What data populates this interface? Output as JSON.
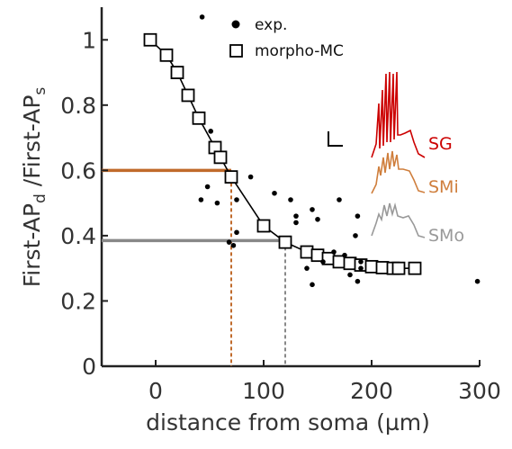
{
  "chart_data": {
    "type": "scatter",
    "xlabel": "distance from soma (µm)",
    "ylabel": {
      "main": "First-AP",
      "sub1": "d",
      "sep": " /First-AP",
      "sub2": "s"
    },
    "xlim": [
      -50,
      300
    ],
    "ylim": [
      0,
      1.1
    ],
    "x_ticks": [
      0,
      100,
      200,
      300
    ],
    "y_ticks": [
      0,
      0.2,
      0.4,
      0.6,
      0.8,
      1
    ],
    "x_tick_labels": [
      "0",
      "100",
      "200",
      "300"
    ],
    "y_tick_labels": [
      "0",
      "0.2",
      "0.4",
      "0.6",
      "0.8",
      "1"
    ],
    "grid": false,
    "legend_position": "top",
    "legend": [
      {
        "label": "exp.",
        "marker": "filled-circle"
      },
      {
        "label": "morpho-MC",
        "marker": "open-square"
      }
    ],
    "series": [
      {
        "name": "exp.",
        "type": "scatter",
        "color": "#000000",
        "points": [
          [
            43,
            1.07
          ],
          [
            51,
            0.72
          ],
          [
            42,
            0.51
          ],
          [
            48,
            0.55
          ],
          [
            57,
            0.5
          ],
          [
            88,
            0.58
          ],
          [
            75,
            0.51
          ],
          [
            72,
            0.37
          ],
          [
            68,
            0.38
          ],
          [
            75,
            0.41
          ],
          [
            110,
            0.53
          ],
          [
            125,
            0.51
          ],
          [
            130,
            0.44
          ],
          [
            130,
            0.46
          ],
          [
            145,
            0.48
          ],
          [
            150,
            0.45
          ],
          [
            155,
            0.32
          ],
          [
            145,
            0.25
          ],
          [
            140,
            0.3
          ],
          [
            170,
            0.51
          ],
          [
            187,
            0.46
          ],
          [
            185,
            0.4
          ],
          [
            190,
            0.32
          ],
          [
            190,
            0.3
          ],
          [
            187,
            0.26
          ],
          [
            298,
            0.26
          ],
          [
            165,
            0.35
          ],
          [
            175,
            0.34
          ],
          [
            180,
            0.28
          ]
        ]
      },
      {
        "name": "morpho-MC",
        "type": "line-with-markers",
        "color": "#000000",
        "points": [
          [
            -5,
            1.0
          ],
          [
            10,
            0.953
          ],
          [
            20,
            0.9
          ],
          [
            30,
            0.83
          ],
          [
            40,
            0.76
          ],
          [
            55,
            0.67
          ],
          [
            60,
            0.64
          ],
          [
            70,
            0.58
          ],
          [
            100,
            0.43
          ],
          [
            120,
            0.38
          ],
          [
            140,
            0.35
          ],
          [
            150,
            0.34
          ],
          [
            160,
            0.33
          ],
          [
            170,
            0.32
          ],
          [
            180,
            0.315
          ],
          [
            190,
            0.31
          ],
          [
            200,
            0.305
          ],
          [
            210,
            0.302
          ],
          [
            220,
            0.3
          ],
          [
            225,
            0.3
          ],
          [
            240,
            0.3
          ]
        ]
      }
    ],
    "annotations": [
      {
        "type": "reference-line",
        "y": 0.6,
        "x_end": 70,
        "color": "#c06a2b",
        "drop_line": true
      },
      {
        "type": "reference-line",
        "y": 0.385,
        "x_end": 120,
        "color": "#888888",
        "drop_line": true
      }
    ],
    "inset_traces": [
      {
        "label": "SG",
        "color": "#cc0000"
      },
      {
        "label": "SMi",
        "color": "#cf7e3c"
      },
      {
        "label": "SMo",
        "color": "#999999"
      }
    ]
  }
}
